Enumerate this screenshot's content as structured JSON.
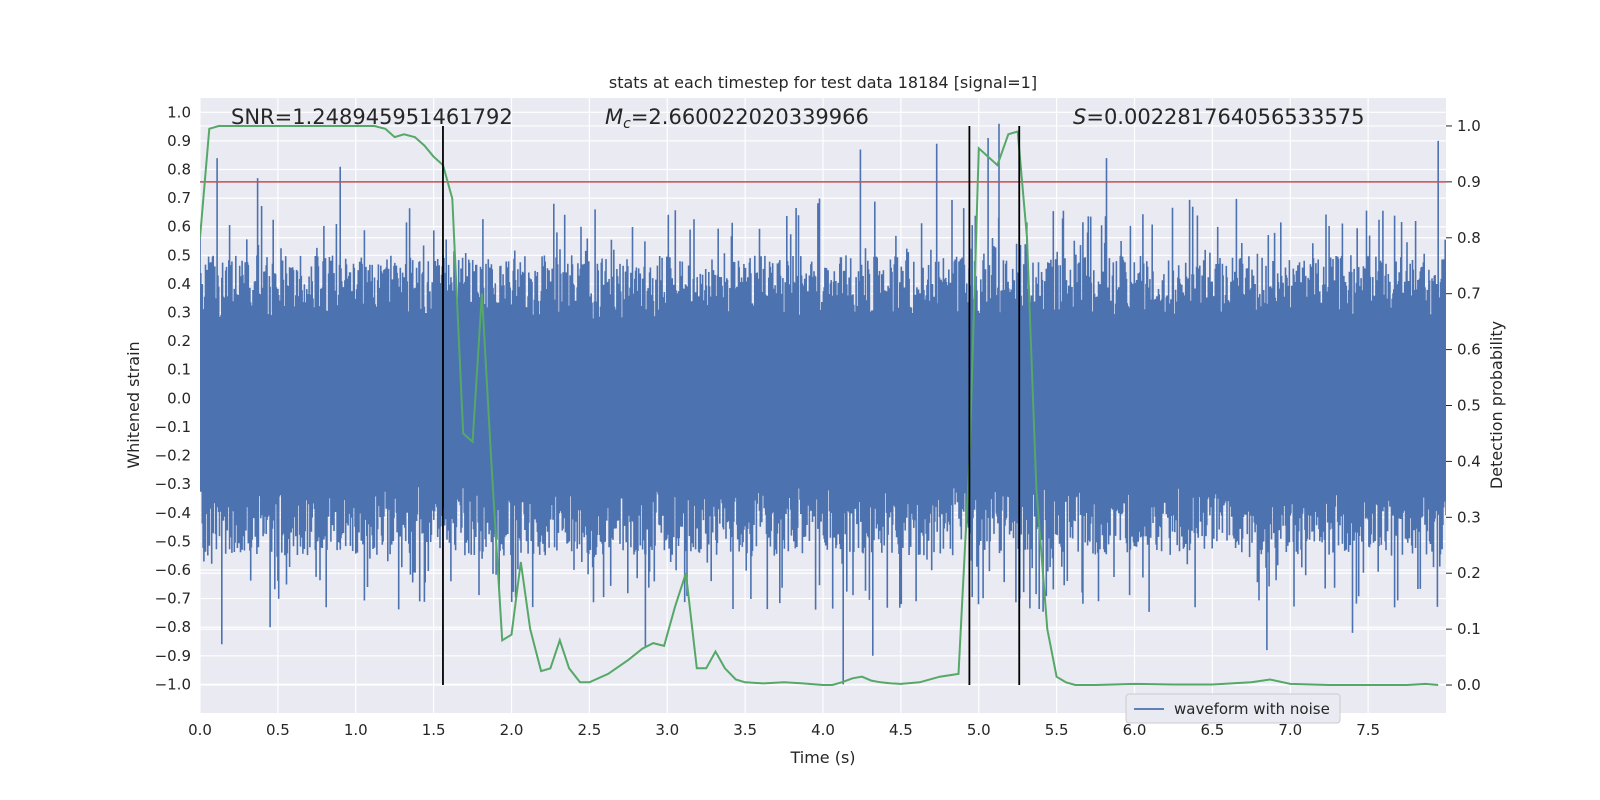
{
  "chart_data": {
    "type": "line",
    "title": "stats at each timestep for test data 18184 [signal=1]",
    "xlabel": "Time (s)",
    "ylabel_left": "Whitened strain",
    "ylabel_right": "Detection probability",
    "xlim": [
      0.0,
      8.0
    ],
    "ylim_left": [
      -1.1,
      1.05
    ],
    "ylim_right": [
      -0.05,
      1.05
    ],
    "x_ticks": [
      0.0,
      0.5,
      1.0,
      1.5,
      2.0,
      2.5,
      3.0,
      3.5,
      4.0,
      4.5,
      5.0,
      5.5,
      6.0,
      6.5,
      7.0,
      7.5
    ],
    "x_tick_labels": [
      "0.0",
      "0.5",
      "1.0",
      "1.5",
      "2.0",
      "2.5",
      "3.0",
      "3.5",
      "4.0",
      "4.5",
      "5.0",
      "5.5",
      "6.0",
      "6.5",
      "7.0",
      "7.5"
    ],
    "left_ticks": [
      1.0,
      0.9,
      0.8,
      0.7,
      0.6,
      0.5,
      0.4,
      0.3,
      0.2,
      0.1,
      0.0,
      -0.1,
      -0.2,
      -0.3,
      -0.4,
      -0.5,
      -0.6,
      -0.7,
      -0.8,
      -0.9,
      -1.0
    ],
    "left_tick_labels": [
      "1.0",
      "0.9",
      "0.8",
      "0.7",
      "0.6",
      "0.5",
      "0.4",
      "0.3",
      "0.2",
      "0.1",
      "0.0",
      "−0.1",
      "−0.2",
      "−0.3",
      "−0.4",
      "−0.5",
      "−0.6",
      "−0.7",
      "−0.8",
      "−0.9",
      "−1.0"
    ],
    "right_ticks": [
      1.0,
      0.9,
      0.8,
      0.7,
      0.6,
      0.5,
      0.4,
      0.3,
      0.2,
      0.1,
      0.0
    ],
    "right_tick_labels": [
      "1.0",
      "0.9",
      "0.8",
      "0.7",
      "0.6",
      "0.5",
      "0.4",
      "0.3",
      "0.2",
      "0.1",
      "0.0"
    ],
    "annotations": {
      "snr": "SNR=1.248945951461792",
      "mc_symbol": "M",
      "mc_sub": "c",
      "mc_value": "=2.660022020339966",
      "s_symbol": "S",
      "s_value": "=0.002281764056533575"
    },
    "threshold": {
      "value": 0.9,
      "axis": "right",
      "color": "#c44e52"
    },
    "vertical_lines": [
      1.56,
      4.94,
      5.26
    ],
    "series": [
      {
        "name": "waveform with noise",
        "axis": "left",
        "color": "#4c72b0",
        "style": "noise",
        "band": [
          -0.55,
          0.5
        ],
        "spikes": [
          {
            "x": 0.11,
            "y": 0.84
          },
          {
            "x": 0.14,
            "y": -0.86
          },
          {
            "x": 0.37,
            "y": 0.77
          },
          {
            "x": 0.9,
            "y": 0.81
          },
          {
            "x": 0.45,
            "y": -0.8
          },
          {
            "x": 0.81,
            "y": -0.73
          },
          {
            "x": 2.86,
            "y": -0.87
          },
          {
            "x": 4.24,
            "y": 0.87
          },
          {
            "x": 4.13,
            "y": -1.0
          },
          {
            "x": 4.32,
            "y": -0.9
          },
          {
            "x": 4.73,
            "y": 0.89
          },
          {
            "x": 5.13,
            "y": 0.96
          },
          {
            "x": 5.06,
            "y": 0.91
          },
          {
            "x": 5.82,
            "y": 0.84
          },
          {
            "x": 6.85,
            "y": -0.88
          },
          {
            "x": 7.4,
            "y": -0.82
          },
          {
            "x": 7.95,
            "y": 0.9
          }
        ]
      },
      {
        "name": "detection probability",
        "axis": "right",
        "color": "#55a868",
        "x": [
          0.0,
          0.06,
          0.12,
          0.25,
          0.5,
          0.75,
          1.0,
          1.12,
          1.19,
          1.25,
          1.31,
          1.38,
          1.44,
          1.5,
          1.56,
          1.62,
          1.69,
          1.75,
          1.81,
          1.87,
          1.94,
          2.0,
          2.06,
          2.12,
          2.19,
          2.25,
          2.31,
          2.37,
          2.44,
          2.5,
          2.62,
          2.75,
          2.84,
          2.91,
          2.98,
          3.05,
          3.12,
          3.19,
          3.25,
          3.31,
          3.37,
          3.44,
          3.5,
          3.62,
          3.75,
          3.87,
          4.0,
          4.06,
          4.12,
          4.19,
          4.25,
          4.31,
          4.37,
          4.44,
          4.5,
          4.62,
          4.75,
          4.87,
          4.94,
          5.0,
          5.06,
          5.12,
          5.19,
          5.25,
          5.31,
          5.37,
          5.44,
          5.5,
          5.56,
          5.62,
          5.75,
          6.0,
          6.25,
          6.5,
          6.75,
          6.87,
          7.0,
          7.25,
          7.5,
          7.75,
          7.87,
          7.95
        ],
        "y": [
          0.8,
          0.995,
          1.0,
          1.0,
          1.0,
          1.0,
          1.0,
          1.0,
          0.995,
          0.98,
          0.985,
          0.98,
          0.965,
          0.945,
          0.93,
          0.87,
          0.45,
          0.435,
          0.7,
          0.4,
          0.08,
          0.09,
          0.22,
          0.1,
          0.025,
          0.03,
          0.08,
          0.03,
          0.005,
          0.005,
          0.02,
          0.045,
          0.065,
          0.075,
          0.07,
          0.14,
          0.2,
          0.03,
          0.03,
          0.06,
          0.03,
          0.01,
          0.005,
          0.003,
          0.005,
          0.003,
          0.0,
          0.0,
          0.005,
          0.012,
          0.015,
          0.008,
          0.005,
          0.003,
          0.002,
          0.005,
          0.015,
          0.02,
          0.4,
          0.96,
          0.945,
          0.93,
          0.985,
          0.99,
          0.8,
          0.35,
          0.1,
          0.015,
          0.005,
          0.0,
          0.0,
          0.002,
          0.001,
          0.001,
          0.005,
          0.01,
          0.002,
          0.0,
          0.0,
          0.0,
          0.002,
          0.0
        ]
      }
    ],
    "legend": {
      "label": "waveform with noise",
      "placement": "lower-right"
    }
  }
}
